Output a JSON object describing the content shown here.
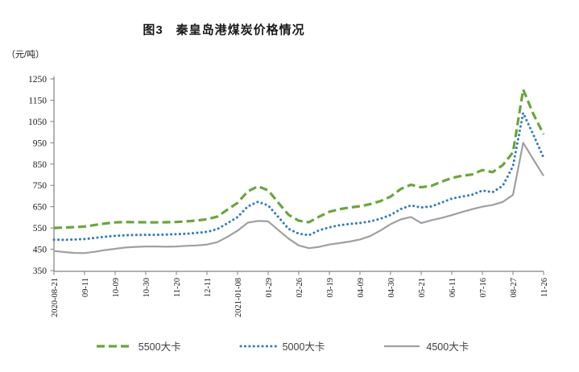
{
  "title": "图3　秦皇岛港煤炭价格情况",
  "y_axis_unit": "（元/吨）",
  "colors": {
    "axis": "#808080",
    "tick_text": "#1a1a1a",
    "series_green": "#69a63c",
    "series_blue": "#2f7bc3",
    "series_gray": "#a0a0a0"
  },
  "chart_data": {
    "type": "line",
    "title": "图3　秦皇岛港煤炭价格情况",
    "ylabel_unit": "（元/吨）",
    "ylim": [
      350,
      1250
    ],
    "y_ticks": [
      1250,
      1150,
      1050,
      950,
      850,
      750,
      650,
      550,
      450,
      350
    ],
    "x_tick_labels": [
      "2020-08-21",
      "09-11",
      "10-09",
      "10-30",
      "11-20",
      "12-11",
      "2021-01-08",
      "01-29",
      "02-26",
      "03-19",
      "04-09",
      "04-30",
      "05-21",
      "06-11",
      "07-16",
      "08-27",
      "11-26"
    ],
    "points_per_label": 3,
    "grid": false,
    "legend_position": "bottom",
    "series": [
      {
        "name": "5500大卡",
        "color": "#69a63c",
        "style": "dashed",
        "values": [
          550,
          552,
          554,
          557,
          564,
          571,
          576,
          578,
          577,
          577,
          576,
          577,
          578,
          581,
          585,
          591,
          603,
          636,
          668,
          722,
          745,
          727,
          668,
          612,
          584,
          577,
          603,
          626,
          638,
          646,
          652,
          662,
          676,
          697,
          733,
          753,
          741,
          748,
          767,
          785,
          795,
          801,
          822,
          812,
          845,
          905,
          1200,
          1085,
          990
        ]
      },
      {
        "name": "5000大卡",
        "color": "#2f7bc3",
        "style": "dotted",
        "values": [
          495,
          494,
          496,
          498,
          503,
          509,
          513,
          516,
          517,
          518,
          518,
          519,
          521,
          523,
          527,
          532,
          544,
          572,
          601,
          651,
          673,
          656,
          601,
          546,
          523,
          516,
          539,
          553,
          563,
          569,
          573,
          581,
          593,
          611,
          639,
          656,
          646,
          651,
          669,
          688,
          697,
          706,
          726,
          718,
          748,
          840,
          1090,
          988,
          880
        ]
      },
      {
        "name": "4500大卡",
        "color": "#a0a0a0",
        "style": "solid",
        "values": [
          442,
          437,
          433,
          432,
          438,
          446,
          452,
          458,
          461,
          463,
          463,
          462,
          463,
          466,
          468,
          472,
          483,
          508,
          537,
          575,
          583,
          581,
          540,
          500,
          468,
          455,
          461,
          472,
          479,
          486,
          496,
          512,
          538,
          568,
          590,
          602,
          573,
          586,
          597,
          610,
          625,
          638,
          650,
          658,
          672,
          705,
          950,
          872,
          795
        ]
      }
    ]
  }
}
